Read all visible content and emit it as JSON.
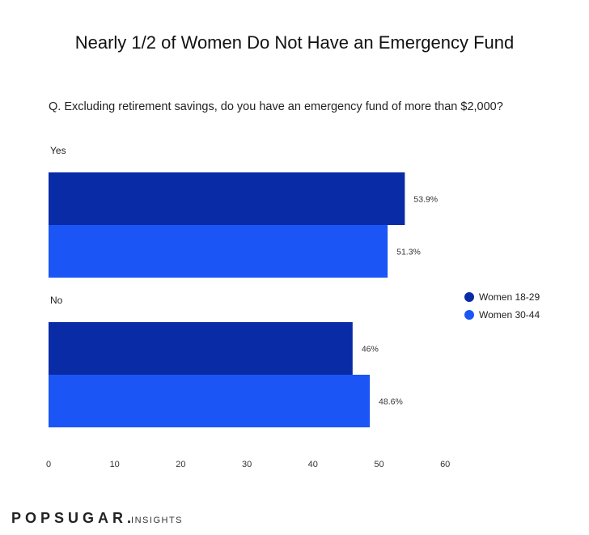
{
  "title": "Nearly  1/2 of Women Do Not Have an Emergency Fund",
  "question": "Q. Excluding retirement savings, do you have an emergency fund of more than $2,000?",
  "logo": {
    "brand": "POPSUGAR",
    "dot": ".",
    "sub": "INSIGHTS"
  },
  "chart_data": {
    "type": "bar",
    "orientation": "horizontal",
    "categories": [
      "Yes",
      "No"
    ],
    "series": [
      {
        "name": "Women 18-29",
        "color": "#0a2ba6",
        "values": [
          53.9,
          46
        ],
        "labels": [
          "53.9%",
          "46%"
        ]
      },
      {
        "name": "Women 30-44",
        "color": "#1b55f5",
        "values": [
          51.3,
          48.6
        ],
        "labels": [
          "51.3%",
          "48.6%"
        ]
      }
    ],
    "xlim": [
      0,
      60
    ],
    "xticks": [
      0,
      10,
      20,
      30,
      40,
      50,
      60
    ],
    "grid": false,
    "legend_position": "right"
  }
}
